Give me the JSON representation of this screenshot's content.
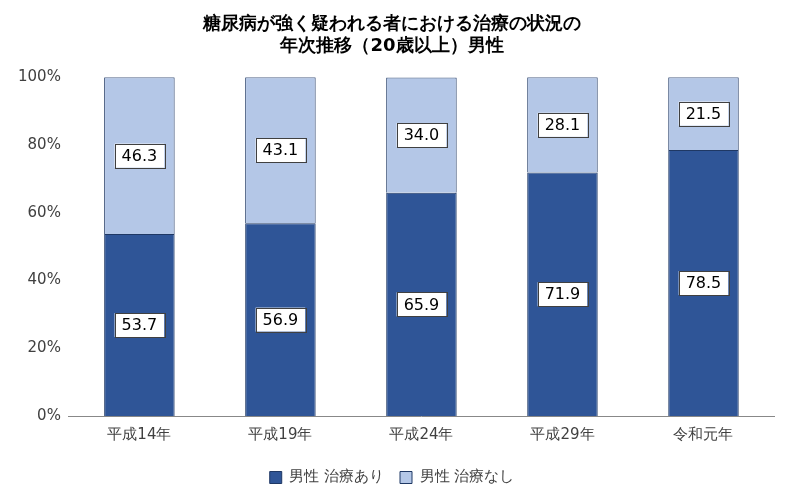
{
  "chart_data": {
    "type": "bar",
    "title": [
      "糖尿病が強く疑われる者における治療の状況の",
      "年次推移（20歳以上）男性"
    ],
    "categories": [
      "平成14年",
      "平成19年",
      "平成24年",
      "平成29年",
      "令和元年"
    ],
    "series": [
      {
        "name": "男性 治療あり",
        "color": "#2f5597",
        "values": [
          53.7,
          56.9,
          65.9,
          71.9,
          78.5
        ],
        "value_labels": [
          "53.7",
          "56.9",
          "65.9",
          "71.9",
          "78.5"
        ]
      },
      {
        "name": "男性 治療なし",
        "color": "#b4c7e7",
        "values": [
          46.3,
          43.1,
          34.0,
          28.1,
          21.5
        ],
        "value_labels": [
          "46.3",
          "43.1",
          "34.0",
          "28.1",
          "21.5"
        ]
      }
    ],
    "ylim": [
      0,
      100
    ],
    "yticks": [
      {
        "value": 0,
        "label": "0%"
      },
      {
        "value": 20,
        "label": "20%"
      },
      {
        "value": 40,
        "label": "40%"
      },
      {
        "value": 60,
        "label": "60%"
      },
      {
        "value": 80,
        "label": "80%"
      },
      {
        "value": 100,
        "label": "100%"
      }
    ],
    "stacked": true,
    "data_labels": true,
    "legend": "bottom",
    "grid": false
  }
}
